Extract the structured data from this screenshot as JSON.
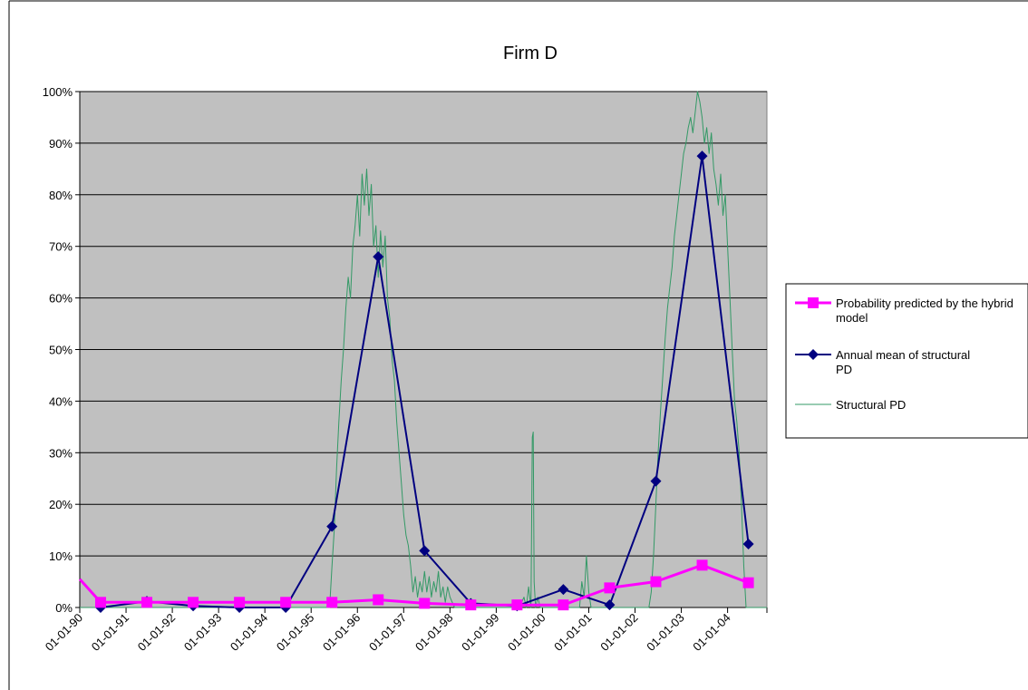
{
  "chart_data": {
    "type": "line",
    "title": "Firm D",
    "xlabel": "",
    "ylabel": "",
    "x_tick_labels": [
      "01-01-90",
      "01-01-91",
      "01-01-92",
      "01-01-93",
      "01-01-94",
      "01-01-95",
      "01-01-96",
      "01-01-97",
      "01-01-98",
      "01-01-99",
      "01-01-00",
      "01-01-01",
      "01-01-02",
      "01-01-03",
      "01-01-04"
    ],
    "x_range": [
      1990.0,
      2004.85
    ],
    "y_tick_labels": [
      "0%",
      "10%",
      "20%",
      "30%",
      "40%",
      "50%",
      "60%",
      "70%",
      "80%",
      "90%",
      "100%"
    ],
    "ylim": [
      0,
      1
    ],
    "grid": true,
    "legend_position": "right",
    "colors": {
      "plot_background": "#c0c0c0",
      "hybrid": "#ff00ff",
      "annual_mean": "#000080",
      "structural": "#339966"
    },
    "series": [
      {
        "name": "Probability predicted by the hybrid model",
        "marker": "square",
        "color": "#ff00ff",
        "x": [
          1990.0,
          1990.45,
          1991.45,
          1992.45,
          1993.45,
          1994.45,
          1995.45,
          1996.45,
          1997.45,
          1998.45,
          1999.45,
          2000.45,
          2001.45,
          2002.45,
          2003.45,
          2004.45
        ],
        "values": [
          0.055,
          0.01,
          0.01,
          0.01,
          0.01,
          0.01,
          0.01,
          0.015,
          0.008,
          0.005,
          0.005,
          0.005,
          0.038,
          0.05,
          0.082,
          0.048
        ]
      },
      {
        "name": "Annual mean of structural PD",
        "marker": "diamond",
        "color": "#000080",
        "x": [
          1990.45,
          1991.45,
          1992.45,
          1993.45,
          1994.45,
          1995.45,
          1996.45,
          1997.45,
          1998.45,
          1999.45,
          2000.45,
          2001.45,
          2002.45,
          2003.45,
          2004.45
        ],
        "values": [
          0.0,
          0.012,
          0.003,
          0.0,
          0.0,
          0.157,
          0.68,
          0.11,
          0.008,
          0.003,
          0.035,
          0.005,
          0.245,
          0.875,
          0.123
        ]
      },
      {
        "name": "Structural PD",
        "marker": "none",
        "color": "#339966",
        "x": [
          1990.0,
          1995.4,
          1995.45,
          1995.5,
          1995.55,
          1995.6,
          1995.65,
          1995.7,
          1995.75,
          1995.8,
          1995.85,
          1995.9,
          1995.95,
          1996.0,
          1996.05,
          1996.1,
          1996.15,
          1996.2,
          1996.25,
          1996.3,
          1996.35,
          1996.4,
          1996.45,
          1996.5,
          1996.55,
          1996.6,
          1996.65,
          1996.7,
          1996.75,
          1996.8,
          1996.85,
          1996.9,
          1996.95,
          1997.0,
          1997.05,
          1997.1,
          1997.15,
          1997.2,
          1997.25,
          1997.3,
          1997.35,
          1997.4,
          1997.45,
          1997.5,
          1997.55,
          1997.6,
          1997.65,
          1997.7,
          1997.75,
          1997.8,
          1997.85,
          1997.9,
          1997.95,
          1998.0,
          1998.05,
          1998.1,
          1998.2,
          1999.5,
          1999.6,
          1999.65,
          1999.7,
          1999.75,
          1999.78,
          1999.8,
          1999.82,
          1999.85,
          1999.9,
          1999.95,
          2000.2,
          2000.5,
          2000.8,
          2000.85,
          2000.9,
          2000.95,
          2001.0,
          2001.05,
          2001.2,
          2002.3,
          2002.35,
          2002.4,
          2002.45,
          2002.5,
          2002.55,
          2002.6,
          2002.65,
          2002.7,
          2002.75,
          2002.8,
          2002.85,
          2002.9,
          2002.95,
          2003.0,
          2003.05,
          2003.1,
          2003.15,
          2003.2,
          2003.25,
          2003.3,
          2003.35,
          2003.4,
          2003.45,
          2003.5,
          2003.55,
          2003.6,
          2003.65,
          2003.7,
          2003.75,
          2003.8,
          2003.85,
          2003.9,
          2003.95,
          2004.0,
          2004.05,
          2004.1,
          2004.15,
          2004.2,
          2004.25,
          2004.3,
          2004.35,
          2004.4,
          2004.85
        ],
        "values": [
          0.0,
          0.0,
          0.08,
          0.15,
          0.27,
          0.36,
          0.44,
          0.5,
          0.58,
          0.64,
          0.6,
          0.7,
          0.74,
          0.8,
          0.72,
          0.84,
          0.78,
          0.85,
          0.76,
          0.82,
          0.7,
          0.74,
          0.64,
          0.73,
          0.66,
          0.72,
          0.6,
          0.56,
          0.48,
          0.44,
          0.36,
          0.3,
          0.24,
          0.18,
          0.14,
          0.12,
          0.08,
          0.03,
          0.06,
          0.02,
          0.05,
          0.03,
          0.07,
          0.03,
          0.06,
          0.02,
          0.05,
          0.03,
          0.07,
          0.02,
          0.04,
          0.01,
          0.04,
          0.02,
          0.01,
          0.0,
          0.0,
          0.0,
          0.02,
          0.0,
          0.04,
          0.0,
          0.33,
          0.34,
          0.05,
          0.0,
          0.02,
          0.0,
          0.0,
          0.0,
          0.0,
          0.05,
          0.02,
          0.1,
          0.03,
          0.0,
          0.0,
          0.0,
          0.03,
          0.1,
          0.2,
          0.3,
          0.38,
          0.45,
          0.52,
          0.58,
          0.62,
          0.66,
          0.72,
          0.76,
          0.8,
          0.84,
          0.88,
          0.9,
          0.93,
          0.95,
          0.92,
          0.96,
          1.0,
          0.98,
          0.95,
          0.9,
          0.93,
          0.88,
          0.92,
          0.85,
          0.82,
          0.78,
          0.84,
          0.76,
          0.8,
          0.7,
          0.6,
          0.5,
          0.4,
          0.36,
          0.3,
          0.2,
          0.08,
          0.0,
          0.0
        ]
      }
    ]
  }
}
